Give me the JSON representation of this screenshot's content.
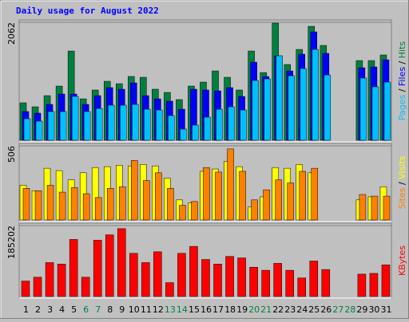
{
  "title": "Daily usage for August 2022",
  "legend_separator": " / ",
  "chart_data": [
    {
      "type": "bar",
      "ylim": [
        0,
        2062
      ],
      "yticks": [
        2062
      ],
      "series": [
        {
          "name": "Hits",
          "color": "#008040",
          "values": [
            655,
            585,
            780,
            947,
            1560,
            724,
            878,
            1031,
            989,
            1115,
            1101,
            892,
            836,
            711,
            947,
            1017,
            1212,
            1101,
            878,
            1560,
            1184,
            2048,
            1324,
            1588,
            1992,
            1658,
            0,
            0,
            1393,
            1393,
            1491
          ]
        },
        {
          "name": "Files",
          "color": "#0000ff",
          "values": [
            502,
            474,
            627,
            808,
            808,
            627,
            780,
            920,
            892,
            1003,
            780,
            724,
            683,
            543,
            892,
            878,
            864,
            920,
            766,
            1365,
            1115,
            1477,
            1212,
            1505,
            1895,
            1519,
            0,
            0,
            1268,
            1282,
            1407
          ]
        },
        {
          "name": "Pages",
          "color": "#00c0ff",
          "values": [
            376,
            334,
            502,
            502,
            766,
            502,
            557,
            613,
            613,
            627,
            543,
            529,
            432,
            195,
            265,
            404,
            543,
            585,
            529,
            1045,
            1073,
            1477,
            1128,
            1254,
            1588,
            1142,
            0,
            0,
            1087,
            934,
            1017
          ]
        }
      ]
    },
    {
      "type": "bar",
      "ylim": [
        0,
        506
      ],
      "yticks": [
        506
      ],
      "series": [
        {
          "name": "Visits",
          "color": "#ffff00",
          "values": [
            237,
            200,
            353,
            337,
            274,
            322,
            358,
            364,
            374,
            369,
            379,
            369,
            285,
            137,
            116,
            332,
            348,
            401,
            364,
            90,
            158,
            358,
            353,
            379,
            322,
            0,
            0,
            0,
            137,
            158,
            227
          ]
        },
        {
          "name": "Sites",
          "color": "#ff8000",
          "values": [
            216,
            200,
            237,
            190,
            221,
            179,
            153,
            216,
            227,
            406,
            269,
            322,
            216,
            100,
            126,
            358,
            327,
            485,
            332,
            137,
            206,
            274,
            253,
            332,
            353,
            0,
            0,
            0,
            174,
            163,
            163
          ]
        }
      ]
    },
    {
      "type": "bar",
      "ylim": [
        0,
        185202
      ],
      "yticks": [
        185202
      ],
      "categories": [
        1,
        2,
        3,
        4,
        5,
        6,
        7,
        8,
        9,
        10,
        11,
        12,
        13,
        14,
        15,
        16,
        17,
        18,
        19,
        20,
        21,
        22,
        23,
        24,
        25,
        26,
        27,
        28,
        29,
        30,
        31
      ],
      "category_colors": [
        "#000000",
        "#000000",
        "#000000",
        "#000000",
        "#000000",
        "#008040",
        "#008040",
        "#000000",
        "#000000",
        "#000000",
        "#000000",
        "#000000",
        "#008040",
        "#008040",
        "#000000",
        "#000000",
        "#000000",
        "#000000",
        "#000000",
        "#008040",
        "#008040",
        "#000000",
        "#000000",
        "#000000",
        "#000000",
        "#000000",
        "#008040",
        "#008040",
        "#000000",
        "#000000",
        "#000000"
      ],
      "series": [
        {
          "name": "KBytes",
          "color": "#ff0000",
          "values": [
            40261,
            50327,
            88575,
            84549,
            148965,
            50327,
            146952,
            161045,
            177150,
            112732,
            88575,
            116758,
            36235,
            112732,
            130849,
            96627,
            84549,
            104679,
            100653,
            76496,
            68443,
            86562,
            68443,
            48313,
            92601,
            70456,
            0,
            0,
            58379,
            60392,
            82536
          ]
        }
      ]
    }
  ]
}
